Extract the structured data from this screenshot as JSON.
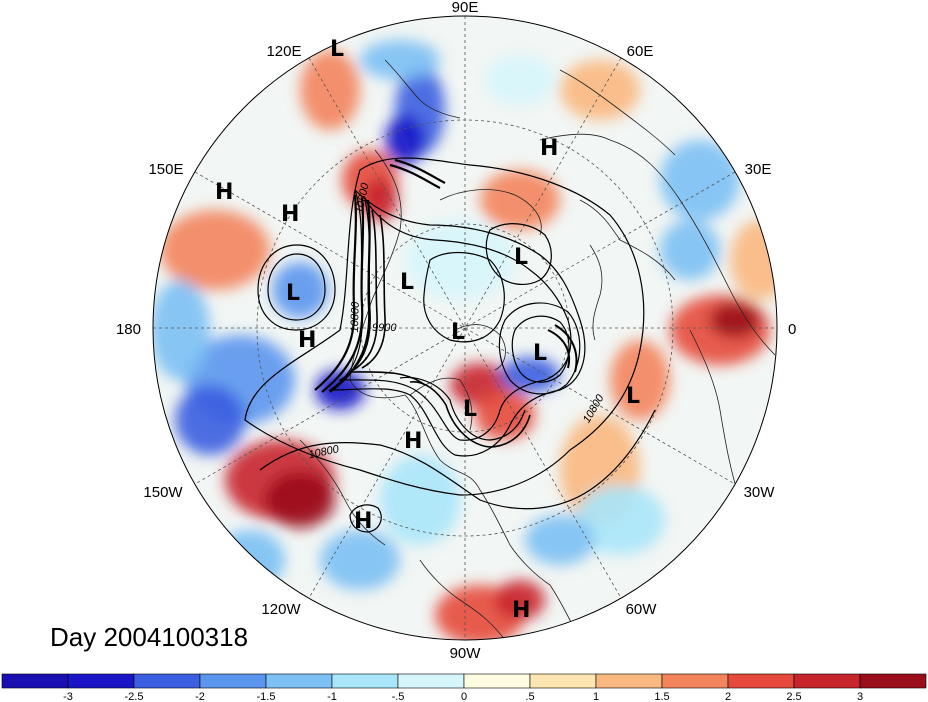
{
  "map": {
    "day_label": "Day 2004100318",
    "longitude_labels": [
      "90E",
      "60E",
      "30E",
      "0",
      "30W",
      "60W",
      "90W",
      "120W",
      "150W",
      "180",
      "150E",
      "120E"
    ],
    "contour_labels": [
      "10800",
      "10800",
      "10800",
      "10800",
      "9900"
    ],
    "pressure_centers": [
      {
        "type": "L"
      },
      {
        "type": "H"
      },
      {
        "type": "H"
      },
      {
        "type": "H"
      },
      {
        "type": "L"
      },
      {
        "type": "H"
      },
      {
        "type": "L"
      },
      {
        "type": "L"
      },
      {
        "type": "L"
      },
      {
        "type": "L"
      },
      {
        "type": "L"
      },
      {
        "type": "L"
      },
      {
        "type": "H"
      },
      {
        "type": "H"
      },
      {
        "type": "H"
      }
    ]
  },
  "colorbar": {
    "tick_labels": [
      "-3",
      "-2.5",
      "-2",
      "-1.5",
      "-1",
      "-.5",
      "0",
      ".5",
      "1",
      "1.5",
      "2",
      "2.5",
      "3"
    ],
    "colors": [
      "#1a16c8",
      "#3c5ee0",
      "#5b96ee",
      "#7cc0f4",
      "#a9e6fa",
      "#d6f6fc",
      "#fdfbe0",
      "#fce5b0",
      "#f9b880",
      "#f3845c",
      "#e54a3c",
      "#c8242c",
      "#9a0e1c"
    ]
  }
}
